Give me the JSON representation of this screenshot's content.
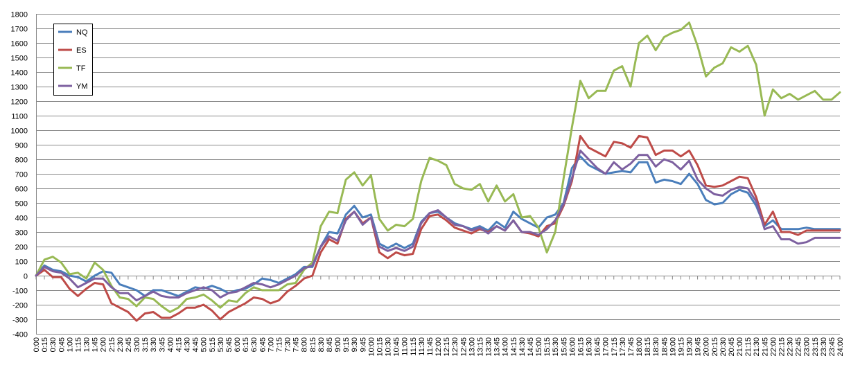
{
  "chart_data": {
    "type": "line",
    "title": "",
    "xlabel": "",
    "ylabel": "",
    "ylim": [
      -400,
      1800
    ],
    "yticks": [
      -400,
      -300,
      -200,
      -100,
      0,
      100,
      200,
      300,
      400,
      500,
      600,
      700,
      800,
      900,
      1000,
      1100,
      1200,
      1300,
      1400,
      1500,
      1600,
      1700,
      1800
    ],
    "grid": true,
    "legend": "top-left",
    "categories": [
      "0:00",
      "0:15",
      "0:30",
      "0:45",
      "1:00",
      "1:15",
      "1:30",
      "1:45",
      "2:00",
      "2:15",
      "2:30",
      "2:45",
      "3:00",
      "3:15",
      "3:30",
      "3:45",
      "4:00",
      "4:15",
      "4:30",
      "4:45",
      "5:00",
      "5:15",
      "5:30",
      "5:45",
      "6:00",
      "6:15",
      "6:30",
      "6:45",
      "7:00",
      "7:15",
      "7:30",
      "7:45",
      "8:00",
      "8:15",
      "8:30",
      "8:45",
      "9:00",
      "9:15",
      "9:30",
      "9:45",
      "10:00",
      "10:15",
      "10:30",
      "10:45",
      "11:00",
      "11:15",
      "11:30",
      "11:45",
      "12:00",
      "12:15",
      "12:30",
      "12:45",
      "13:00",
      "13:15",
      "13:30",
      "13:45",
      "14:00",
      "14:15",
      "14:30",
      "14:45",
      "15:00",
      "15:15",
      "15:30",
      "15:45",
      "16:00",
      "16:15",
      "16:30",
      "16:45",
      "17:00",
      "17:15",
      "17:30",
      "17:45",
      "18:00",
      "18:15",
      "18:30",
      "18:45",
      "19:00",
      "19:15",
      "19:30",
      "19:45",
      "20:00",
      "20:15",
      "20:30",
      "20:45",
      "21:00",
      "21:15",
      "21:30",
      "21:45",
      "22:00",
      "22:15",
      "22:30",
      "22:45",
      "23:00",
      "23:15",
      "23:30",
      "23:45",
      "24:00"
    ],
    "series": [
      {
        "name": "NQ",
        "color": "#4a7ebb",
        "values": [
          0,
          70,
          40,
          30,
          0,
          -10,
          -40,
          0,
          30,
          20,
          -60,
          -80,
          -100,
          -140,
          -100,
          -100,
          -120,
          -140,
          -110,
          -80,
          -90,
          -70,
          -90,
          -120,
          -100,
          -90,
          -60,
          -20,
          -30,
          -50,
          -20,
          10,
          60,
          60,
          200,
          300,
          290,
          420,
          480,
          400,
          420,
          220,
          190,
          220,
          190,
          220,
          370,
          430,
          440,
          400,
          360,
          340,
          320,
          340,
          310,
          370,
          330,
          440,
          390,
          360,
          330,
          400,
          420,
          500,
          740,
          820,
          760,
          730,
          700,
          710,
          720,
          710,
          780,
          780,
          640,
          660,
          650,
          630,
          700,
          630,
          520,
          490,
          500,
          560,
          590,
          570,
          480,
          340,
          380,
          320,
          320,
          320,
          330,
          320,
          320,
          320,
          320
        ]
      },
      {
        "name": "ES",
        "color": "#be4b48",
        "values": [
          0,
          40,
          -10,
          -10,
          -90,
          -140,
          -90,
          -50,
          -60,
          -190,
          -220,
          -250,
          -310,
          -260,
          -250,
          -290,
          -290,
          -260,
          -220,
          -220,
          -200,
          -240,
          -300,
          -250,
          -220,
          -190,
          -150,
          -160,
          -190,
          -170,
          -110,
          -70,
          -20,
          0,
          160,
          250,
          220,
          390,
          440,
          360,
          400,
          160,
          120,
          160,
          140,
          150,
          320,
          410,
          420,
          380,
          330,
          310,
          290,
          320,
          300,
          340,
          310,
          380,
          300,
          290,
          270,
          340,
          360,
          480,
          650,
          960,
          880,
          850,
          820,
          920,
          910,
          880,
          960,
          950,
          830,
          860,
          860,
          820,
          860,
          760,
          620,
          610,
          620,
          650,
          680,
          670,
          540,
          350,
          440,
          300,
          300,
          280,
          310,
          310,
          310,
          310,
          310
        ]
      },
      {
        "name": "TF",
        "color": "#98b954",
        "values": [
          0,
          110,
          130,
          90,
          10,
          20,
          -20,
          90,
          40,
          -70,
          -150,
          -160,
          -210,
          -150,
          -160,
          -210,
          -250,
          -220,
          -160,
          -150,
          -130,
          -170,
          -220,
          -170,
          -180,
          -120,
          -80,
          -100,
          -100,
          -100,
          -60,
          -50,
          40,
          90,
          340,
          440,
          430,
          660,
          710,
          620,
          690,
          390,
          310,
          350,
          340,
          390,
          650,
          810,
          790,
          760,
          630,
          600,
          590,
          630,
          510,
          620,
          510,
          560,
          400,
          410,
          330,
          160,
          300,
          670,
          1020,
          1340,
          1220,
          1270,
          1270,
          1410,
          1440,
          1300,
          1600,
          1650,
          1550,
          1640,
          1670,
          1690,
          1740,
          1580,
          1370,
          1430,
          1460,
          1570,
          1540,
          1580,
          1450,
          1100,
          1280,
          1220,
          1250,
          1210,
          1240,
          1270,
          1210,
          1210,
          1260
        ]
      },
      {
        "name": "YM",
        "color": "#7d60a0",
        "values": [
          0,
          60,
          30,
          20,
          -20,
          -80,
          -50,
          -20,
          -20,
          -80,
          -120,
          -120,
          -170,
          -140,
          -110,
          -140,
          -150,
          -150,
          -120,
          -100,
          -80,
          -100,
          -150,
          -120,
          -110,
          -80,
          -50,
          -60,
          -80,
          -60,
          -30,
          0,
          50,
          70,
          200,
          270,
          240,
          380,
          440,
          350,
          400,
          200,
          170,
          190,
          170,
          200,
          360,
          430,
          450,
          400,
          350,
          340,
          310,
          330,
          290,
          340,
          310,
          380,
          300,
          300,
          280,
          320,
          380,
          490,
          670,
          860,
          800,
          740,
          700,
          780,
          730,
          770,
          830,
          830,
          750,
          800,
          780,
          730,
          790,
          660,
          600,
          560,
          550,
          590,
          610,
          600,
          510,
          320,
          340,
          250,
          250,
          220,
          230,
          260,
          260,
          260,
          260
        ]
      }
    ]
  }
}
